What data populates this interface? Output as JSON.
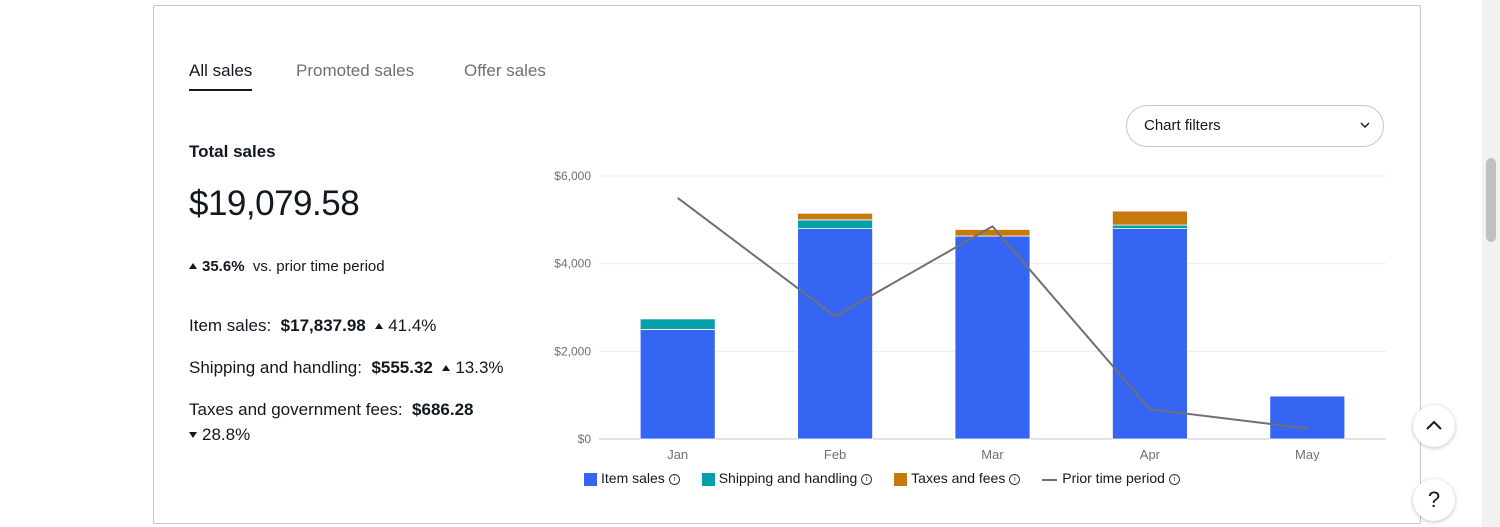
{
  "tabs": [
    {
      "label": "All sales",
      "active": true
    },
    {
      "label": "Promoted sales",
      "active": false
    },
    {
      "label": "Offer sales",
      "active": false
    }
  ],
  "summary": {
    "title": "Total sales",
    "total": "$19,079.58",
    "delta": "35.6%",
    "delta_direction": "up",
    "delta_suffix": "vs. prior time period"
  },
  "metrics": [
    {
      "label": "Item sales:",
      "value": "$17,837.98",
      "change": "41.4%",
      "direction": "up"
    },
    {
      "label": "Shipping and handling:",
      "value": "$555.32",
      "change": "13.3%",
      "direction": "up"
    },
    {
      "label": "Taxes and government fees:",
      "value": "$686.28",
      "change": "28.8%",
      "direction": "down"
    }
  ],
  "filter": {
    "label": "Chart filters",
    "icon": "chevron-down-icon"
  },
  "colors": {
    "item_sales": "#3665f3",
    "shipping": "#06a0a9",
    "taxes": "#c8790e",
    "prior": "#707070"
  },
  "chart_data": {
    "type": "bar",
    "stacked": true,
    "categories": [
      "Jan",
      "Feb",
      "Mar",
      "Apr",
      "May"
    ],
    "series": [
      {
        "name": "Item sales",
        "values": [
          2500,
          4800,
          4630,
          4800,
          980
        ]
      },
      {
        "name": "Shipping and handling",
        "values": [
          240,
          200,
          0,
          80,
          0
        ]
      },
      {
        "name": "Taxes and fees",
        "values": [
          0,
          150,
          150,
          320,
          0
        ]
      }
    ],
    "line_series": {
      "name": "Prior time period",
      "values": [
        5500,
        2800,
        4850,
        680,
        240
      ]
    },
    "yticks": [
      "$0",
      "$2,000",
      "$4,000",
      "$6,000"
    ],
    "ylim": [
      0,
      6000
    ],
    "grid": true,
    "legend_position": "bottom"
  },
  "buttons": {
    "help": "?"
  }
}
